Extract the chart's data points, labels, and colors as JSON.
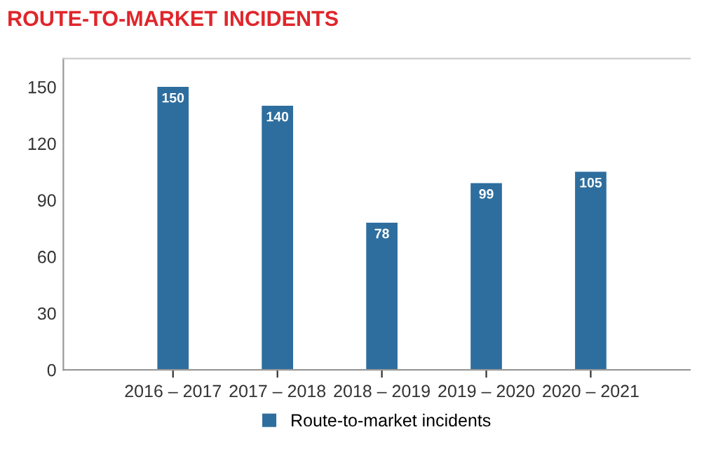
{
  "chart_data": {
    "type": "bar",
    "title": "ROUTE-TO-MARKET INCIDENTS",
    "categories": [
      "2016 – 2017",
      "2017 – 2018",
      "2018 – 2019",
      "2019 – 2020",
      "2020 – 2021"
    ],
    "series": [
      {
        "name": "Route-to-market incidents",
        "color": "#2e6e9e",
        "values": [
          150,
          140,
          78,
          99,
          105
        ]
      }
    ],
    "ylim": [
      0,
      165
    ],
    "yticks": [
      0,
      30,
      60,
      90,
      120,
      150
    ],
    "grid": false,
    "legend": "bottom",
    "data_labels": true
  }
}
